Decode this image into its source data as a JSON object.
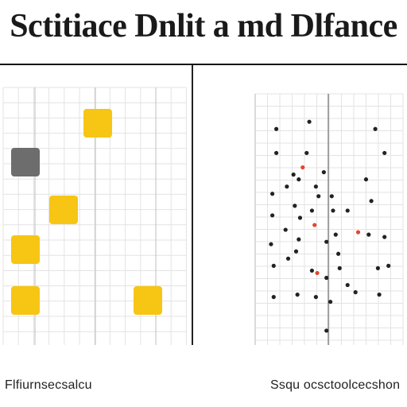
{
  "title": "Sctitiace Dnlit a md Dlfance",
  "captions": {
    "left": "Flfiurnsecsalcu",
    "right": "Ssqu ocsctoolcecshon"
  },
  "colors": {
    "yellow": "#f7c514",
    "gray": "#6d6d6d",
    "dot": "#222222",
    "accent_red": "#e2462d",
    "grid": "#e3e3e3",
    "axis": "#cfcfcf"
  },
  "left_panel": {
    "squares": [
      {
        "col": 2,
        "row": 1,
        "color": "yellow"
      },
      {
        "col": 0,
        "row": 2,
        "color": "gray"
      },
      {
        "col": 1,
        "row": 3,
        "color": "yellow"
      },
      {
        "col": 0,
        "row": 4,
        "color": "yellow"
      },
      {
        "col": 0,
        "row": 5,
        "color": "yellow"
      },
      {
        "col": 3,
        "row": 5,
        "color": "yellow"
      }
    ]
  },
  "right_panel": {
    "points": [
      {
        "x": 0.1,
        "y": 0.12
      },
      {
        "x": 0.35,
        "y": 0.09
      },
      {
        "x": 0.1,
        "y": 0.22
      },
      {
        "x": 0.33,
        "y": 0.22
      },
      {
        "x": 0.85,
        "y": 0.12
      },
      {
        "x": 0.92,
        "y": 0.22
      },
      {
        "x": 0.3,
        "y": 0.28,
        "color": "accent_red"
      },
      {
        "x": 0.46,
        "y": 0.3
      },
      {
        "x": 0.23,
        "y": 0.31
      },
      {
        "x": 0.27,
        "y": 0.33
      },
      {
        "x": 0.18,
        "y": 0.36
      },
      {
        "x": 0.4,
        "y": 0.36
      },
      {
        "x": 0.78,
        "y": 0.33
      },
      {
        "x": 0.07,
        "y": 0.39
      },
      {
        "x": 0.42,
        "y": 0.4
      },
      {
        "x": 0.52,
        "y": 0.4
      },
      {
        "x": 0.82,
        "y": 0.42
      },
      {
        "x": 0.24,
        "y": 0.44
      },
      {
        "x": 0.37,
        "y": 0.46
      },
      {
        "x": 0.53,
        "y": 0.46
      },
      {
        "x": 0.07,
        "y": 0.48
      },
      {
        "x": 0.64,
        "y": 0.46
      },
      {
        "x": 0.28,
        "y": 0.49
      },
      {
        "x": 0.17,
        "y": 0.54
      },
      {
        "x": 0.39,
        "y": 0.52,
        "color": "accent_red"
      },
      {
        "x": 0.55,
        "y": 0.56
      },
      {
        "x": 0.72,
        "y": 0.55,
        "color": "accent_red"
      },
      {
        "x": 0.8,
        "y": 0.56
      },
      {
        "x": 0.27,
        "y": 0.58
      },
      {
        "x": 0.06,
        "y": 0.6
      },
      {
        "x": 0.48,
        "y": 0.59
      },
      {
        "x": 0.92,
        "y": 0.57
      },
      {
        "x": 0.25,
        "y": 0.63
      },
      {
        "x": 0.19,
        "y": 0.66
      },
      {
        "x": 0.57,
        "y": 0.64
      },
      {
        "x": 0.08,
        "y": 0.69
      },
      {
        "x": 0.37,
        "y": 0.71
      },
      {
        "x": 0.41,
        "y": 0.72,
        "color": "accent_red"
      },
      {
        "x": 0.58,
        "y": 0.7
      },
      {
        "x": 0.87,
        "y": 0.7
      },
      {
        "x": 0.95,
        "y": 0.69
      },
      {
        "x": 0.48,
        "y": 0.74
      },
      {
        "x": 0.64,
        "y": 0.77
      },
      {
        "x": 0.26,
        "y": 0.81
      },
      {
        "x": 0.7,
        "y": 0.8
      },
      {
        "x": 0.08,
        "y": 0.82
      },
      {
        "x": 0.88,
        "y": 0.81
      },
      {
        "x": 0.51,
        "y": 0.84
      },
      {
        "x": 0.4,
        "y": 0.82
      },
      {
        "x": 0.48,
        "y": 0.96
      }
    ]
  }
}
